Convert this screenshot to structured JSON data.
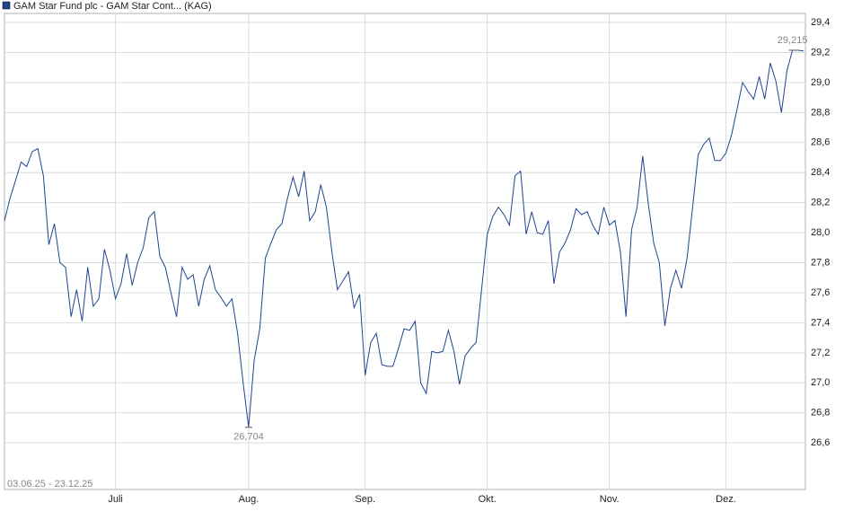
{
  "chart_data": {
    "type": "line",
    "legend_title": "GAM Star Fund plc - GAM Star Cont... (KAG)",
    "date_range": "03.06.25 - 23.12.25",
    "grid": true,
    "xlim": [
      0,
      144
    ],
    "xticks": [
      {
        "value": 20,
        "label": "Juli"
      },
      {
        "value": 44,
        "label": "Aug."
      },
      {
        "value": 65,
        "label": "Sep."
      },
      {
        "value": 87,
        "label": "Okt."
      },
      {
        "value": 109,
        "label": "Nov."
      },
      {
        "value": 130,
        "label": "Dez."
      }
    ],
    "ylim": [
      26.29,
      29.46
    ],
    "yticks": [
      {
        "value": 26.6,
        "label": "26,6"
      },
      {
        "value": 26.8,
        "label": "26,8"
      },
      {
        "value": 27.0,
        "label": "27,0"
      },
      {
        "value": 27.2,
        "label": "27,2"
      },
      {
        "value": 27.4,
        "label": "27,4"
      },
      {
        "value": 27.6,
        "label": "27,6"
      },
      {
        "value": 27.8,
        "label": "27,8"
      },
      {
        "value": 28.0,
        "label": "28,0"
      },
      {
        "value": 28.2,
        "label": "28,2"
      },
      {
        "value": 28.4,
        "label": "28,4"
      },
      {
        "value": 28.6,
        "label": "28,6"
      },
      {
        "value": 28.8,
        "label": "28,8"
      },
      {
        "value": 29.0,
        "label": "29,0"
      },
      {
        "value": 29.2,
        "label": "29,2"
      },
      {
        "value": 29.4,
        "label": "29,4"
      }
    ],
    "series": [
      {
        "name": "GAM Star Fund plc - GAM Star Cont... (KAG)",
        "color": "#1f4591",
        "values": [
          28.08,
          28.23,
          28.35,
          28.47,
          28.44,
          28.54,
          28.56,
          28.38,
          27.92,
          28.06,
          27.8,
          27.77,
          27.44,
          27.62,
          27.41,
          27.77,
          27.51,
          27.56,
          27.89,
          27.75,
          27.56,
          27.66,
          27.86,
          27.65,
          27.8,
          27.9,
          28.1,
          28.14,
          27.84,
          27.77,
          27.6,
          27.44,
          27.77,
          27.69,
          27.72,
          27.51,
          27.69,
          27.78,
          27.62,
          27.57,
          27.51,
          27.56,
          27.33,
          27.0,
          26.704,
          27.15,
          27.36,
          27.83,
          27.93,
          28.02,
          28.06,
          28.23,
          28.37,
          28.24,
          28.41,
          28.08,
          28.14,
          28.32,
          28.17,
          27.87,
          27.62,
          27.68,
          27.74,
          27.5,
          27.59,
          27.05,
          27.27,
          27.33,
          27.12,
          27.11,
          27.11,
          27.23,
          27.36,
          27.35,
          27.41,
          27.0,
          26.93,
          27.21,
          27.2,
          27.21,
          27.35,
          27.21,
          26.99,
          27.18,
          27.23,
          27.27,
          27.63,
          27.99,
          28.11,
          28.17,
          28.12,
          28.05,
          28.38,
          28.41,
          27.99,
          28.14,
          28.0,
          27.99,
          28.08,
          27.66,
          27.87,
          27.93,
          28.02,
          28.16,
          28.12,
          28.14,
          28.05,
          27.99,
          28.17,
          28.05,
          28.08,
          27.87,
          27.44,
          28.02,
          28.17,
          28.51,
          28.2,
          27.93,
          27.8,
          27.38,
          27.63,
          27.75,
          27.63,
          27.83,
          28.17,
          28.52,
          28.59,
          28.63,
          28.48,
          28.48,
          28.53,
          28.65,
          28.82,
          29.0,
          28.94,
          28.89,
          29.04,
          28.89,
          29.13,
          29.01,
          28.8,
          29.08,
          29.215,
          29.215,
          29.21
        ]
      }
    ],
    "annotations": [
      {
        "x": 44,
        "value": 26.704,
        "label": "26,704"
      },
      {
        "x": 142,
        "value": 29.215,
        "label": "29,215"
      }
    ]
  }
}
